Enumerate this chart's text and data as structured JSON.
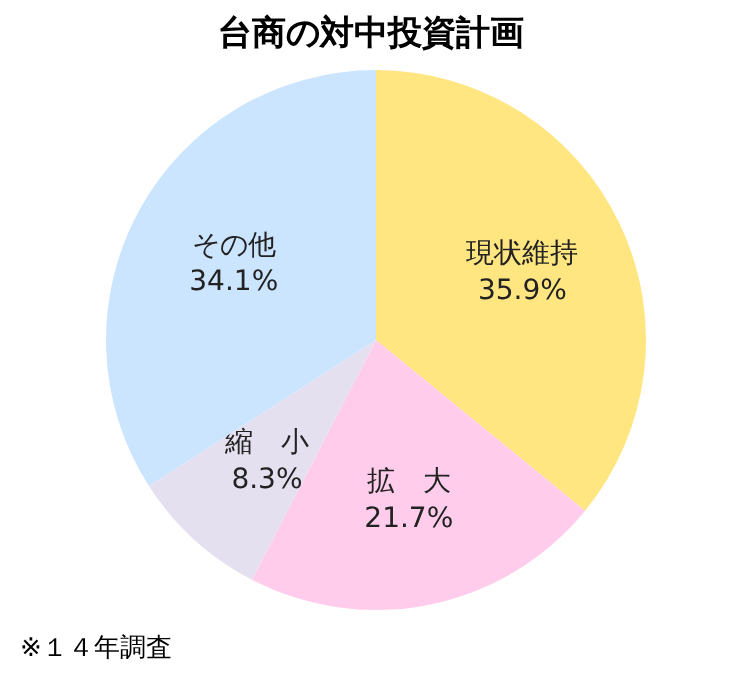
{
  "chart_data": {
    "type": "pie",
    "title": "台商の対中投資計画",
    "categories": [
      "現状維持",
      "拡　大",
      "縮　小",
      "その他"
    ],
    "values": [
      35.9,
      21.7,
      8.3,
      34.1
    ],
    "colors": [
      "#ffe680",
      "#ffcceb",
      "#e4e0f0",
      "#cce5ff"
    ],
    "value_labels": [
      "35.9%",
      "21.7%",
      "8.3%",
      "34.1%"
    ],
    "legend": false,
    "annotations": [
      "※１４年調査"
    ]
  }
}
